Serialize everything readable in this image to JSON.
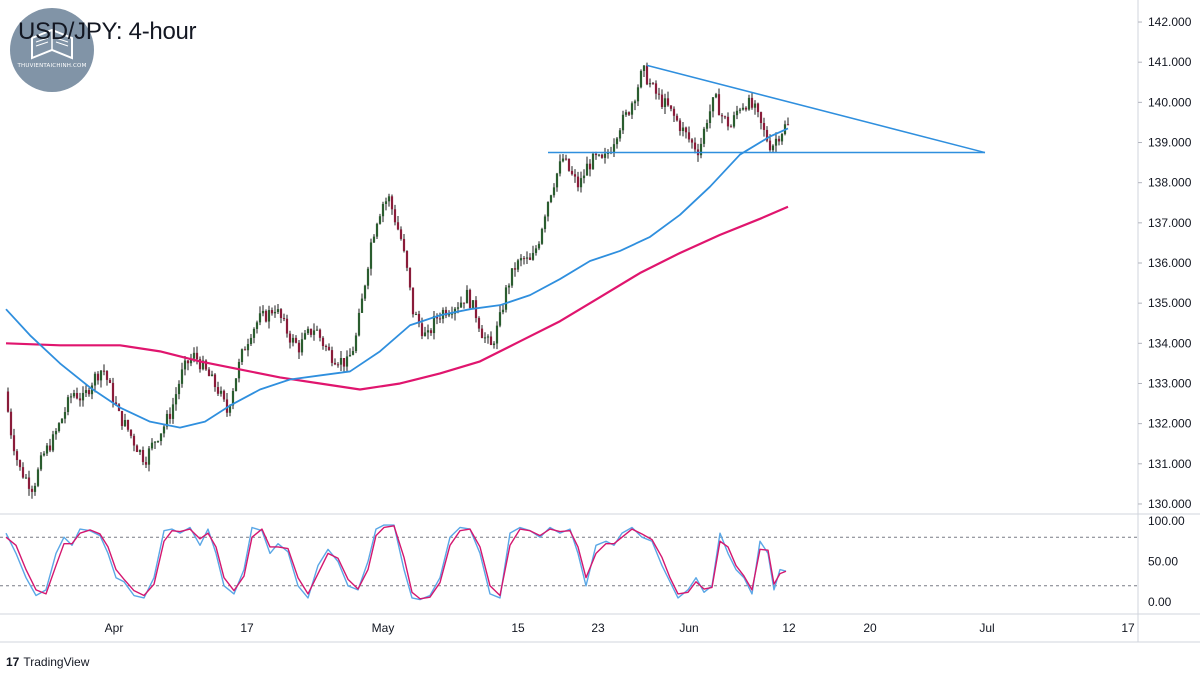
{
  "header": {
    "title": "USD/JPY: 4-hour",
    "watermark_text": "THUVIENTAICHINH.COM"
  },
  "footer": {
    "brand_label": "TradingView",
    "brand_icon": "tradingview-logo-icon"
  },
  "colors": {
    "up_candle": "#2a5d2f",
    "down_candle": "#8a1c3a",
    "wick": "#1e1e1e",
    "ma_fast": "#2f8fde",
    "ma_slow": "#e0156e",
    "trendline": "#2f8fde",
    "stoch_k": "#5aa7e6",
    "stoch_d": "#d4176f"
  },
  "chart_data": [
    {
      "type": "candlestick",
      "title": "USD/JPY: 4-hour",
      "ylim": [
        129.8,
        142.2
      ],
      "y_ticks": [
        "142.000",
        "141.000",
        "140.000",
        "139.000",
        "138.000",
        "137.000",
        "136.000",
        "135.000",
        "134.000",
        "133.000",
        "132.000",
        "131.000",
        "130.000"
      ],
      "x_ticks": [
        "Apr",
        "17",
        "May",
        "15",
        "23",
        "Jun",
        "12",
        "20",
        "Jul",
        "17"
      ],
      "x_tick_pos": [
        114,
        247,
        383,
        518,
        598,
        689,
        789,
        870,
        987,
        1128
      ],
      "price_path_x": [
        8,
        14,
        22,
        30,
        36,
        46,
        56,
        66,
        76,
        86,
        96,
        106,
        114,
        122,
        130,
        138,
        148,
        158,
        166,
        174,
        184,
        190,
        198,
        206,
        214,
        222,
        230,
        238,
        246,
        254,
        262,
        270,
        278,
        286,
        294,
        302,
        310,
        318,
        326,
        334,
        342,
        350,
        358,
        366,
        374,
        380,
        386,
        392,
        398,
        404,
        410,
        416,
        422,
        430,
        438,
        446,
        454,
        462,
        470,
        478,
        486,
        494,
        502,
        510,
        518,
        526,
        534,
        542,
        550,
        558,
        566,
        574,
        582,
        590,
        598,
        606,
        614,
        622,
        630,
        638,
        646,
        654,
        662,
        670,
        678,
        686,
        694,
        702,
        710,
        718,
        726,
        734,
        742,
        750,
        758,
        766,
        774,
        782,
        788
      ],
      "price_path_y": [
        132.8,
        131.8,
        130.9,
        130.6,
        130.4,
        131.2,
        131.6,
        132.2,
        132.8,
        132.6,
        133.1,
        133.4,
        132.8,
        132.2,
        131.9,
        131.5,
        131.1,
        131.6,
        131.9,
        132.3,
        133.2,
        133.5,
        133.7,
        133.4,
        133.1,
        132.8,
        132.3,
        133.1,
        133.8,
        134.3,
        134.6,
        134.7,
        134.9,
        134.5,
        134.1,
        133.9,
        134.2,
        134.4,
        134.0,
        133.7,
        133.6,
        133.5,
        134.0,
        135.2,
        136.5,
        137.1,
        137.5,
        137.6,
        137.1,
        136.6,
        135.8,
        134.8,
        134.5,
        134.1,
        134.6,
        134.8,
        134.9,
        135.0,
        135.2,
        134.8,
        134.2,
        133.9,
        134.5,
        135.4,
        135.9,
        136.1,
        136.0,
        136.6,
        137.5,
        138.1,
        138.6,
        138.2,
        137.9,
        138.4,
        138.6,
        138.5,
        138.9,
        139.4,
        139.7,
        140.2,
        140.8,
        140.4,
        140.1,
        139.9,
        139.6,
        139.3,
        139.0,
        138.8,
        139.6,
        140.1,
        139.6,
        139.4,
        139.9,
        140.0,
        139.8,
        139.3,
        138.9,
        139.2,
        139.4
      ],
      "ma_fast": {
        "x": [
          6,
          30,
          60,
          90,
          120,
          150,
          180,
          205,
          230,
          260,
          290,
          320,
          350,
          380,
          410,
          440,
          470,
          500,
          530,
          560,
          590,
          620,
          650,
          680,
          710,
          740,
          770,
          788
        ],
        "y": [
          134.85,
          134.2,
          133.5,
          132.9,
          132.4,
          132.05,
          131.9,
          132.05,
          132.45,
          132.85,
          133.1,
          133.2,
          133.3,
          133.8,
          134.45,
          134.7,
          134.85,
          134.95,
          135.2,
          135.6,
          136.05,
          136.3,
          136.65,
          137.2,
          137.9,
          138.7,
          139.15,
          139.35
        ]
      },
      "ma_slow": {
        "x": [
          6,
          60,
          120,
          160,
          200,
          240,
          280,
          320,
          360,
          400,
          440,
          480,
          520,
          560,
          600,
          640,
          680,
          720,
          760,
          788
        ],
        "y": [
          134.0,
          133.95,
          133.95,
          133.8,
          133.55,
          133.35,
          133.15,
          133.0,
          132.85,
          133.0,
          133.25,
          133.55,
          134.05,
          134.55,
          135.15,
          135.75,
          136.25,
          136.7,
          137.1,
          137.4
        ]
      },
      "annotations": [
        {
          "type": "horizontal-support",
          "price": 138.75,
          "x_start": 548,
          "x_end": 985
        },
        {
          "type": "descending-trendline",
          "points": [
            [
              647,
              140.92
            ],
            [
              985,
              138.75
            ]
          ]
        }
      ]
    },
    {
      "type": "line",
      "title": "Stochastic oscillator",
      "ylim": [
        0,
        100
      ],
      "y_ticks": [
        "100.00",
        "50.00",
        "0.00"
      ],
      "levels": [
        80,
        20
      ],
      "series": [
        {
          "color_key": "stoch_k",
          "x": [
            6,
            16,
            26,
            36,
            46,
            56,
            64,
            72,
            80,
            90,
            100,
            108,
            116,
            124,
            134,
            144,
            154,
            164,
            172,
            180,
            190,
            200,
            208,
            216,
            224,
            234,
            244,
            252,
            262,
            270,
            278,
            288,
            298,
            308,
            318,
            328,
            338,
            348,
            358,
            368,
            376,
            384,
            394,
            404,
            412,
            420,
            430,
            440,
            450,
            460,
            470,
            480,
            490,
            500,
            510,
            520,
            530,
            540,
            550,
            560,
            570,
            578,
            586,
            596,
            606,
            614,
            622,
            632,
            642,
            652,
            662,
            670,
            678,
            688,
            696,
            704,
            712,
            720,
            728,
            736,
            744,
            752,
            760,
            768,
            774,
            780,
            786
          ],
          "y": [
            85,
            60,
            30,
            8,
            15,
            60,
            80,
            70,
            90,
            88,
            82,
            60,
            30,
            25,
            8,
            5,
            30,
            88,
            90,
            85,
            92,
            70,
            90,
            60,
            20,
            10,
            40,
            92,
            88,
            60,
            72,
            62,
            20,
            5,
            45,
            65,
            50,
            20,
            15,
            50,
            90,
            95,
            95,
            40,
            5,
            3,
            8,
            30,
            80,
            92,
            90,
            60,
            10,
            5,
            85,
            92,
            88,
            80,
            92,
            85,
            90,
            60,
            20,
            70,
            75,
            70,
            85,
            92,
            80,
            75,
            45,
            25,
            5,
            15,
            30,
            12,
            20,
            85,
            60,
            40,
            30,
            10,
            75,
            60,
            15,
            40,
            38
          ]
        },
        {
          "color_key": "stoch_d",
          "x": [
            6,
            16,
            26,
            36,
            46,
            56,
            64,
            72,
            80,
            90,
            100,
            108,
            116,
            124,
            134,
            144,
            154,
            164,
            172,
            180,
            190,
            200,
            208,
            216,
            224,
            234,
            244,
            252,
            262,
            270,
            278,
            288,
            298,
            308,
            318,
            328,
            338,
            348,
            358,
            368,
            376,
            384,
            394,
            404,
            412,
            420,
            430,
            440,
            450,
            460,
            470,
            480,
            490,
            500,
            510,
            520,
            530,
            540,
            550,
            560,
            570,
            578,
            586,
            596,
            606,
            614,
            622,
            632,
            642,
            652,
            662,
            670,
            678,
            688,
            696,
            704,
            712,
            720,
            728,
            736,
            744,
            752,
            760,
            768,
            774,
            780,
            786
          ],
          "y": [
            80,
            70,
            40,
            15,
            10,
            45,
            72,
            72,
            85,
            89,
            84,
            68,
            40,
            28,
            14,
            8,
            22,
            75,
            88,
            87,
            90,
            78,
            85,
            68,
            30,
            14,
            32,
            80,
            90,
            68,
            68,
            66,
            30,
            10,
            35,
            60,
            54,
            28,
            16,
            40,
            82,
            92,
            94,
            55,
            12,
            4,
            6,
            24,
            70,
            88,
            90,
            68,
            20,
            8,
            70,
            90,
            88,
            82,
            90,
            87,
            88,
            68,
            30,
            60,
            72,
            72,
            80,
            90,
            84,
            77,
            55,
            30,
            10,
            12,
            25,
            16,
            18,
            75,
            68,
            45,
            32,
            15,
            65,
            64,
            22,
            35,
            38
          ]
        }
      ]
    }
  ]
}
